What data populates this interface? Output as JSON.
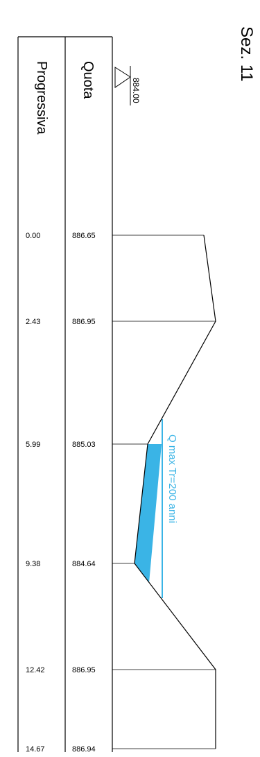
{
  "title": "Sez. 11",
  "headers": {
    "elevation": "Quota",
    "distance": "Progressiva"
  },
  "datum": {
    "value": "884.00",
    "icon": "datum-triangle-icon"
  },
  "flow_label": "Q max Tr=200 anni",
  "colors": {
    "water": "#3ab4e6",
    "line": "#000000"
  },
  "chart_data": {
    "type": "cross-section",
    "datum": 884.0,
    "points": [
      {
        "progressiva": "0.00",
        "quota": "886.65"
      },
      {
        "progressiva": "2.43",
        "quota": "886.95"
      },
      {
        "progressiva": "5.99",
        "quota": "885.03"
      },
      {
        "progressiva": "9.38",
        "quota": "884.64"
      },
      {
        "progressiva": "12.42",
        "quota": "886.95"
      },
      {
        "progressiva": "14.67",
        "quota": "886.94"
      }
    ],
    "water_level_label": "Q max Tr=200 anni"
  }
}
